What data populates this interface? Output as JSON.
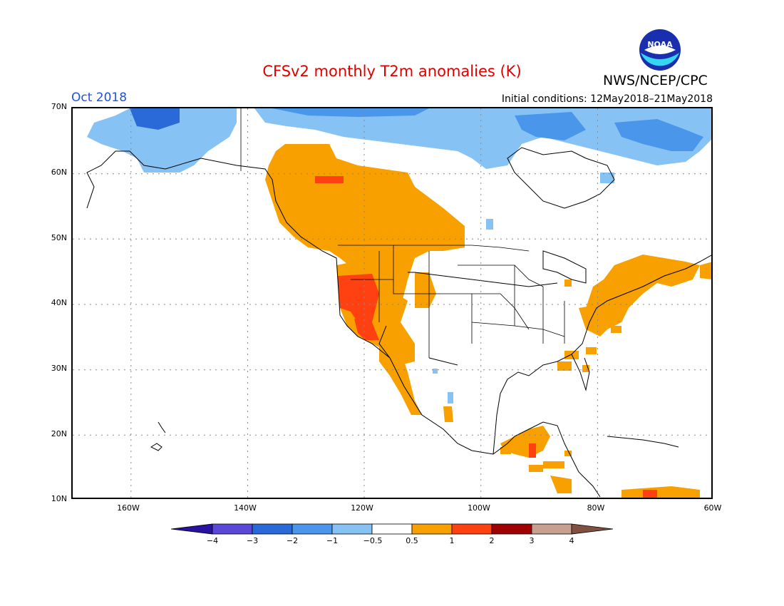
{
  "title": "CFSv2 monthly T2m anomalies (K)",
  "month": "Oct 2018",
  "initial_conditions": "Initial conditions: 12May2018–21May2018",
  "agency": "NWS/NCEP/CPC",
  "logo_text": "NOAA",
  "lat_labels": [
    "70N",
    "60N",
    "50N",
    "40N",
    "30N",
    "20N",
    "10N"
  ],
  "lon_labels": [
    "160W",
    "140W",
    "120W",
    "100W",
    "80W",
    "60W"
  ],
  "colorbar": {
    "labels": [
      "−4",
      "−3",
      "−2",
      "−1",
      "−0.5",
      "0.5",
      "1",
      "2",
      "3",
      "4"
    ],
    "colors": [
      "#2a12a0",
      "#5a48d8",
      "#2a6ad8",
      "#4a96ea",
      "#86c2f4",
      "#ffffff",
      "#f7a000",
      "#ff4010",
      "#a00000",
      "#c8a090",
      "#805040"
    ]
  },
  "colors": {
    "title": "#e00000",
    "month": "#2050e0",
    "warm1": "#f7a000",
    "warm2": "#ff4010",
    "cool1": "#86c2f4",
    "cool2": "#4a96ea",
    "cool3": "#2a6ad8"
  }
}
